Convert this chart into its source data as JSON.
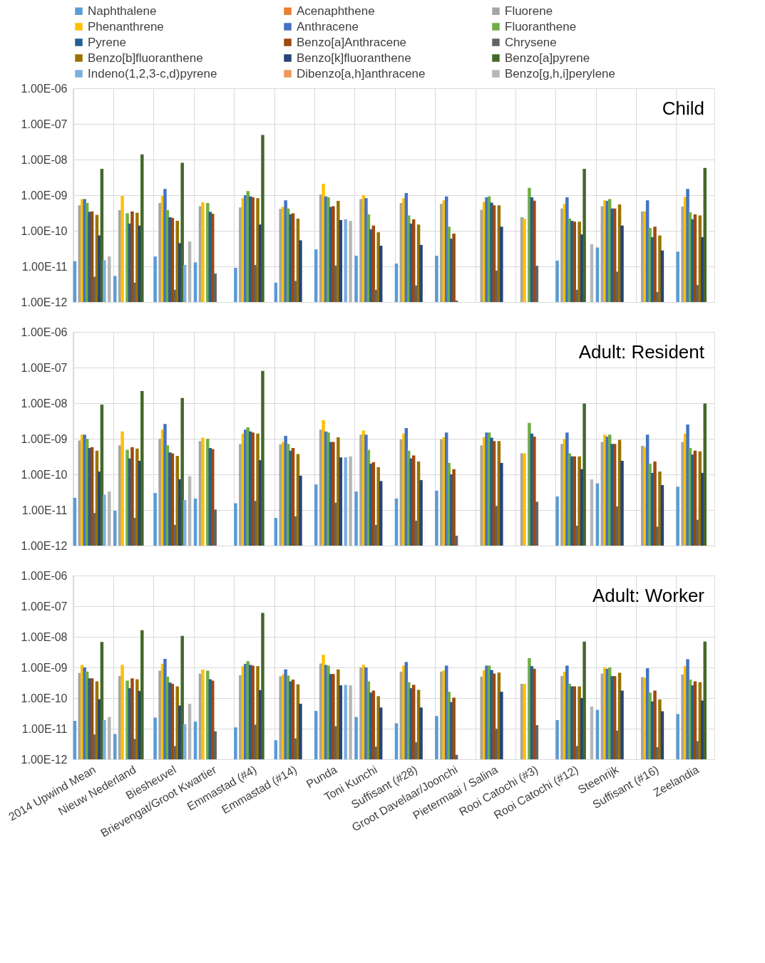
{
  "chart_data": [
    {
      "type": "bar",
      "title": "Child",
      "log": true,
      "grid": true,
      "legend": "top",
      "tick_labels": "y",
      "categories": [
        null,
        null,
        null,
        null,
        null,
        null,
        null,
        null,
        null,
        null,
        null,
        null,
        null,
        null,
        null,
        null
      ],
      "ylim": [
        1e-12,
        1e-06
      ],
      "yticks": [
        {
          "value": 1e-12,
          "label": "1.00E-12"
        },
        {
          "value": 1e-11,
          "label": "1.00E-11"
        },
        {
          "value": 1e-10,
          "label": "1.00E-10"
        },
        {
          "value": 1e-09,
          "label": "1.00E-09"
        },
        {
          "value": 1e-08,
          "label": "1.00E-08"
        },
        {
          "value": 1e-07,
          "label": "1.00E-07"
        },
        {
          "value": 1e-06,
          "label": "1.00E-06"
        }
      ],
      "series": [
        {
          "name": "Naphthalene",
          "color": "#5b9bd5",
          "values": [
            1.4e-11,
            5.4e-12,
            1.9e-11,
            1.3e-11,
            9.1e-12,
            3.5e-12,
            3e-11,
            2e-11,
            1.2e-11,
            2e-11,
            null,
            null,
            1.45e-11,
            3.4e-11,
            null,
            2.6e-11
          ]
        },
        {
          "name": "Acenaphthene",
          "color": "#ed7d31",
          "values": [
            null,
            null,
            null,
            null,
            null,
            null,
            null,
            null,
            null,
            null,
            null,
            null,
            null,
            null,
            null,
            null
          ]
        },
        {
          "name": "Fluorene",
          "color": "#a5a5a5",
          "values": [
            5.2e-10,
            3.8e-10,
            6e-10,
            4.9e-10,
            4.5e-10,
            4.1e-10,
            1.05e-09,
            7.8e-10,
            6e-10,
            5.7e-10,
            3.9e-10,
            2.4e-10,
            4.2e-10,
            4.9e-10,
            3.5e-10,
            4.8e-10
          ]
        },
        {
          "name": "Phenanthrene",
          "color": "#ffc000",
          "values": [
            7.8e-10,
            9.5e-10,
            9.5e-10,
            6.3e-10,
            8.2e-10,
            4.7e-10,
            2.1e-09,
            1e-09,
            8.2e-10,
            7.2e-10,
            6.5e-10,
            2.2e-10,
            5.7e-10,
            7.2e-10,
            3.5e-10,
            8.9e-10
          ]
        },
        {
          "name": "Anthracene",
          "color": "#4472c4",
          "values": [
            7.8e-10,
            null,
            1.5e-09,
            null,
            1e-09,
            7.2e-10,
            9.2e-10,
            8.2e-10,
            1.15e-09,
            9.2e-10,
            8.7e-10,
            null,
            8.7e-10,
            6.9e-10,
            7.2e-10,
            1.5e-09
          ]
        },
        {
          "name": "Fluoranthene",
          "color": "#70ad47",
          "values": [
            6e-10,
            3.1e-10,
            3.8e-10,
            6e-10,
            1.3e-09,
            4.2e-10,
            8.7e-10,
            2.9e-10,
            2.7e-10,
            1.3e-10,
            9.2e-10,
            1.6e-09,
            2.2e-10,
            7.8e-10,
            1.2e-10,
            3.3e-10
          ]
        },
        {
          "name": "Pyrene",
          "color": "#255e91",
          "values": [
            3.4e-10,
            1.6e-10,
            2.4e-10,
            3.4e-10,
            9.2e-10,
            2.9e-10,
            4.7e-10,
            1.1e-10,
            1.6e-10,
            6e-11,
            6.2e-10,
            8.7e-10,
            1.9e-10,
            4.2e-10,
            6.6e-11,
            2.1e-10
          ]
        },
        {
          "name": "Benzo[a]Anthracene",
          "color": "#9e480e",
          "values": [
            3.5e-10,
            3.5e-10,
            2.3e-10,
            3e-10,
            8.7e-10,
            3.1e-10,
            4.9e-10,
            1.4e-10,
            2.1e-10,
            8.3e-11,
            5.2e-10,
            7e-10,
            1.8e-10,
            4.2e-10,
            1.3e-10,
            2.9e-10
          ]
        },
        {
          "name": "Chrysene",
          "color": "#636363",
          "values": [
            5.1e-12,
            3.5e-12,
            2.2e-12,
            6.3e-12,
            1.1e-11,
            3.9e-12,
            1.06e-11,
            2.2e-12,
            2.9e-12,
            1.1e-12,
            7.6e-12,
            1.04e-11,
            2.2e-12,
            7.1e-12,
            1.9e-12,
            3e-12
          ]
        },
        {
          "name": "Benzo[b]fluoranthene",
          "color": "#997300",
          "values": [
            2.8e-10,
            3.2e-10,
            1.9e-10,
            null,
            8.2e-10,
            2.2e-10,
            6.9e-10,
            9.1e-11,
            1.5e-10,
            null,
            5.2e-10,
            null,
            1.8e-10,
            5.5e-10,
            7.4e-11,
            2.7e-10
          ]
        },
        {
          "name": "Benzo[k]fluoranthene",
          "color": "#264478",
          "values": [
            7.4e-11,
            1.4e-10,
            4.5e-11,
            null,
            1.5e-10,
            5.4e-11,
            2e-10,
            3.8e-11,
            4e-11,
            null,
            1.3e-10,
            null,
            7.9e-11,
            1.4e-10,
            2.8e-11,
            6.6e-11
          ]
        },
        {
          "name": "Benzo[a]pyrene",
          "color": "#43682b",
          "values": [
            5.5e-09,
            1.4e-08,
            8.1e-09,
            null,
            4.9e-08,
            null,
            null,
            null,
            null,
            null,
            null,
            null,
            5.5e-09,
            null,
            null,
            5.8e-09
          ]
        },
        {
          "name": "Indeno(1,2,3-c,d)pyrene",
          "color": "#7cafdd",
          "values": [
            1.5e-11,
            null,
            1.1e-11,
            null,
            null,
            null,
            2.1e-10,
            null,
            null,
            null,
            null,
            null,
            null,
            null,
            null,
            null
          ]
        },
        {
          "name": "Dibenzo[a,h]anthracene",
          "color": "#f1975a",
          "values": [
            null,
            null,
            null,
            null,
            null,
            null,
            null,
            null,
            null,
            null,
            null,
            null,
            null,
            null,
            null,
            null
          ]
        },
        {
          "name": "Benzo[g,h,i]perylene",
          "color": "#b7b7b7",
          "values": [
            1.9e-11,
            null,
            5e-11,
            null,
            null,
            null,
            1.9e-10,
            null,
            null,
            null,
            null,
            null,
            4.2e-11,
            null,
            null,
            null
          ]
        }
      ]
    },
    {
      "type": "bar",
      "title": "Adult:  Resident",
      "log": true,
      "grid": true,
      "tick_labels": "y",
      "categories": [
        null,
        null,
        null,
        null,
        null,
        null,
        null,
        null,
        null,
        null,
        null,
        null,
        null,
        null,
        null,
        null
      ],
      "ylim": [
        1e-12,
        1e-06
      ],
      "yticks": [
        {
          "value": 1e-12,
          "label": "1.00E-12"
        },
        {
          "value": 1e-11,
          "label": "1.00E-11"
        },
        {
          "value": 1e-10,
          "label": "1.00E-10"
        },
        {
          "value": 1e-09,
          "label": "1.00E-09"
        },
        {
          "value": 1e-08,
          "label": "1.00E-08"
        },
        {
          "value": 1e-07,
          "label": "1.00E-07"
        },
        {
          "value": 1e-06,
          "label": "1.00E-06"
        }
      ],
      "series": [
        {
          "color": "#5b9bd5",
          "values": [
            2.2e-11,
            9.5e-12,
            3e-11,
            2.1e-11,
            1.55e-11,
            6e-12,
            5.2e-11,
            3.3e-11,
            2.1e-11,
            3.5e-11,
            null,
            null,
            2.4e-11,
            5.6e-11,
            null,
            4.5e-11
          ]
        },
        {
          "color": "#ed7d31",
          "values": [
            null,
            null,
            null,
            null,
            null,
            null,
            null,
            null,
            null,
            null,
            null,
            null,
            null,
            null,
            null,
            null
          ]
        },
        {
          "color": "#a5a5a5",
          "values": [
            8.9e-10,
            6.5e-10,
            1e-09,
            8.6e-10,
            7.2e-10,
            7e-10,
            1.8e-09,
            1.3e-09,
            9.7e-10,
            9.7e-10,
            6.5e-10,
            3.9e-10,
            7.2e-10,
            8.1e-10,
            6.3e-10,
            8.1e-10
          ]
        },
        {
          "color": "#ffc000",
          "values": [
            1.3e-09,
            1.6e-09,
            1.8e-09,
            1.07e-09,
            1.4e-09,
            8.1e-10,
            3.3e-09,
            1.7e-09,
            1.4e-09,
            1.1e-09,
            1.1e-09,
            3.9e-10,
            1e-09,
            1.3e-09,
            5.8e-10,
            1.4e-09
          ]
        },
        {
          "color": "#4472c4",
          "values": [
            1.3e-09,
            null,
            2.6e-09,
            null,
            1.8e-09,
            1.2e-09,
            1.6e-09,
            1.3e-09,
            2e-09,
            1.5e-09,
            1.5e-09,
            null,
            1.5e-09,
            1.15e-09,
            1.3e-09,
            2.5e-09
          ]
        },
        {
          "color": "#70ad47",
          "values": [
            1e-09,
            4.9e-10,
            6.5e-10,
            1e-09,
            2.1e-09,
            7.2e-10,
            1.5e-09,
            4.9e-10,
            4.6e-10,
            2.1e-10,
            1.5e-09,
            2.8e-09,
            3.9e-10,
            1.3e-09,
            2e-10,
            5.5e-10
          ]
        },
        {
          "color": "#255e91",
          "values": [
            5.5e-10,
            2.8e-10,
            4.1e-10,
            5.5e-10,
            1.6e-09,
            4.6e-10,
            8.1e-10,
            2e-10,
            2.8e-10,
            1e-10,
            1.07e-09,
            1.4e-09,
            3.2e-10,
            7.2e-10,
            1.1e-10,
            3.6e-10
          ]
        },
        {
          "color": "#9e480e",
          "values": [
            5.8e-10,
            5.8e-10,
            3.9e-10,
            5.1e-10,
            1.5e-09,
            5.5e-10,
            8.1e-10,
            2.2e-10,
            3.4e-10,
            1.4e-10,
            8.6e-10,
            1.15e-09,
            3.2e-10,
            7.2e-10,
            2.3e-10,
            4.6e-10
          ]
        },
        {
          "color": "#636363",
          "values": [
            8.2e-12,
            6e-12,
            3.8e-12,
            1.03e-11,
            1.8e-11,
            6.6e-12,
            1.6e-11,
            3.8e-12,
            5e-12,
            1.9e-12,
            1.3e-11,
            1.7e-11,
            3.6e-12,
            1.25e-11,
            3.4e-12,
            5.3e-12
          ]
        },
        {
          "color": "#997300",
          "values": [
            4.6e-10,
            5.3e-10,
            3.3e-10,
            null,
            1.4e-09,
            3.7e-10,
            1.1e-09,
            1.6e-10,
            2.3e-10,
            null,
            8.6e-10,
            null,
            3.2e-10,
            9.3e-10,
            1.2e-10,
            4.4e-10
          ]
        },
        {
          "color": "#264478",
          "values": [
            1.2e-10,
            2.4e-10,
            7.3e-11,
            null,
            2.5e-10,
            9.2e-11,
            3e-10,
            6.5e-11,
            6.9e-11,
            null,
            2.1e-10,
            null,
            1.4e-10,
            2.4e-10,
            5e-11,
            1.1e-10
          ]
        },
        {
          "color": "#43682b",
          "values": [
            9.1e-09,
            2.2e-08,
            1.4e-08,
            null,
            8e-08,
            null,
            null,
            null,
            null,
            null,
            null,
            null,
            9.8e-09,
            null,
            null,
            9.8e-09
          ]
        },
        {
          "color": "#7cafdd",
          "values": [
            2.7e-11,
            null,
            1.9e-11,
            null,
            null,
            null,
            3e-10,
            null,
            null,
            null,
            null,
            null,
            null,
            null,
            null,
            null
          ]
        },
        {
          "color": "#f1975a",
          "values": [
            null,
            null,
            null,
            null,
            null,
            null,
            null,
            null,
            null,
            null,
            null,
            null,
            null,
            null,
            null,
            null
          ]
        },
        {
          "color": "#b7b7b7",
          "values": [
            3.3e-11,
            null,
            8.9e-11,
            null,
            null,
            null,
            3.2e-10,
            null,
            null,
            null,
            null,
            null,
            7.2e-11,
            null,
            null,
            null
          ]
        }
      ]
    },
    {
      "type": "bar",
      "title": "Adult:  Worker",
      "log": true,
      "grid": true,
      "categories": [
        "2014 Upwind Mean",
        "Nieuw Nederland",
        "Biesheuvel",
        "Brievengat/Groot Kwartier",
        "Emmastad (#4)",
        "Emmastad (#14)",
        "Punda",
        "Toni Kunchi",
        "Suffisant (#28)",
        "Groot Davelaar/Joonchi",
        "Pietermaai / Salina",
        "Rooi Catochi (#3)",
        "Rooi Catochi (#12)",
        "Steenrijk",
        "Suffisant (#16)",
        "Zeelandia"
      ],
      "ylim": [
        1e-12,
        1e-06
      ],
      "yticks": [
        {
          "value": 1e-12,
          "label": "1.00E-12"
        },
        {
          "value": 1e-11,
          "label": "1.00E-11"
        },
        {
          "value": 1e-10,
          "label": "1.00E-10"
        },
        {
          "value": 1e-09,
          "label": "1.00E-09"
        },
        {
          "value": 1e-08,
          "label": "1.00E-08"
        },
        {
          "value": 1e-07,
          "label": "1.00E-07"
        },
        {
          "value": 1e-06,
          "label": "1.00E-06"
        }
      ],
      "series": [
        {
          "color": "#5b9bd5",
          "values": [
            1.8e-11,
            6.7e-12,
            2.3e-11,
            1.7e-11,
            1.1e-11,
            4.2e-12,
            3.8e-11,
            2.4e-11,
            1.5e-11,
            2.6e-11,
            null,
            null,
            1.9e-11,
            4.1e-11,
            null,
            3e-11
          ]
        },
        {
          "color": "#ed7d31",
          "values": [
            null,
            null,
            null,
            null,
            null,
            null,
            null,
            null,
            null,
            null,
            null,
            null,
            null,
            null,
            null,
            null
          ]
        },
        {
          "color": "#a5a5a5",
          "values": [
            6.6e-10,
            5.2e-10,
            7.8e-10,
            6.3e-10,
            5.6e-10,
            5.1e-10,
            1.35e-09,
            1e-09,
            7.3e-10,
            7.3e-10,
            5e-10,
            2.9e-10,
            5.2e-10,
            6.3e-10,
            4.8e-10,
            5.9e-10
          ]
        },
        {
          "color": "#ffc000",
          "values": [
            1.2e-09,
            1.2e-09,
            1.3e-09,
            8.5e-10,
            1.1e-09,
            5.9e-10,
            2.6e-09,
            1.2e-09,
            1.15e-09,
            8e-10,
            8.2e-10,
            2.9e-10,
            7.2e-10,
            1e-09,
            4.6e-10,
            1.1e-09
          ]
        },
        {
          "color": "#4472c4",
          "values": [
            1e-09,
            null,
            1.9e-09,
            null,
            1.3e-09,
            8.6e-10,
            1.2e-09,
            1e-09,
            1.5e-09,
            1.15e-09,
            1.15e-09,
            null,
            1.15e-09,
            9e-10,
            9.4e-10,
            1.85e-09
          ]
        },
        {
          "color": "#70ad47",
          "values": [
            7.3e-10,
            3.7e-10,
            5e-10,
            7.8e-10,
            1.6e-09,
            5.4e-10,
            1.15e-09,
            3.5e-10,
            3.3e-10,
            1.6e-10,
            1.15e-09,
            2e-09,
            2.9e-10,
            1e-09,
            1.5e-10,
            4e-10
          ]
        },
        {
          "color": "#255e91",
          "values": [
            4.4e-10,
            2.1e-10,
            3.2e-10,
            4.1e-10,
            1.2e-09,
            3.5e-10,
            6.1e-10,
            1.5e-10,
            2.1e-10,
            7.4e-11,
            8.2e-10,
            1.1e-09,
            2.4e-10,
            5.2e-10,
            7.8e-11,
            2.6e-10
          ]
        },
        {
          "color": "#9e480e",
          "values": [
            4.4e-10,
            4.4e-10,
            2.9e-10,
            3.7e-10,
            1.15e-09,
            4e-10,
            6.1e-10,
            1.75e-10,
            2.7e-10,
            1.03e-10,
            6.3e-10,
            9e-10,
            2.4e-10,
            5.2e-10,
            1.75e-10,
            3.5e-10
          ]
        },
        {
          "color": "#636363",
          "values": [
            6.4e-12,
            4.6e-12,
            2.7e-12,
            8.2e-12,
            1.35e-11,
            4.8e-12,
            1.2e-11,
            2.6e-12,
            3.6e-12,
            1.4e-12,
            1e-11,
            1.3e-11,
            2.7e-12,
            8.6e-12,
            2.5e-12,
            3.9e-12
          ]
        },
        {
          "color": "#997300",
          "values": [
            3.5e-10,
            4.1e-10,
            2.4e-10,
            null,
            1.1e-09,
            2.8e-10,
            8.6e-10,
            1.15e-10,
            1.85e-10,
            null,
            6.8e-10,
            null,
            2.4e-10,
            6.7e-10,
            9e-11,
            3.3e-10
          ]
        },
        {
          "color": "#264478",
          "values": [
            9.1e-11,
            1.7e-10,
            5.7e-11,
            null,
            1.8e-10,
            6.5e-11,
            2.6e-10,
            4.9e-11,
            4.9e-11,
            null,
            1.6e-10,
            null,
            1e-10,
            1.75e-10,
            3.7e-11,
            8.3e-11
          ]
        },
        {
          "color": "#43682b",
          "values": [
            6.8e-09,
            1.65e-08,
            1.07e-08,
            null,
            6e-08,
            null,
            null,
            null,
            null,
            null,
            null,
            null,
            7e-09,
            null,
            null,
            7e-09
          ]
        },
        {
          "color": "#7cafdd",
          "values": [
            1.9e-11,
            null,
            1.4e-11,
            null,
            null,
            null,
            2.7e-10,
            null,
            null,
            null,
            null,
            null,
            null,
            null,
            null,
            null
          ]
        },
        {
          "color": "#f1975a",
          "values": [
            null,
            null,
            null,
            null,
            null,
            null,
            null,
            null,
            null,
            null,
            null,
            null,
            null,
            null,
            null,
            null
          ]
        },
        {
          "color": "#b7b7b7",
          "values": [
            2.4e-11,
            null,
            6.5e-11,
            null,
            null,
            null,
            2.6e-10,
            null,
            null,
            null,
            null,
            null,
            5.3e-11,
            null,
            null,
            null
          ]
        }
      ]
    }
  ]
}
